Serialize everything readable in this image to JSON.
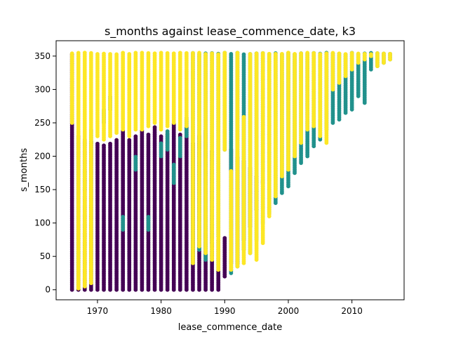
{
  "chart_data": {
    "type": "scatter",
    "title": "s_months against lease_commence_date, k3",
    "xlabel": "lease_commence_date",
    "ylabel": "s_months",
    "xlim": [
      1963.5,
      2018.2
    ],
    "ylim": [
      -15,
      373
    ],
    "x_ticks": [
      1970,
      1980,
      1990,
      2000,
      2010
    ],
    "y_ticks": [
      0,
      50,
      100,
      150,
      200,
      250,
      300,
      350
    ],
    "grid": false,
    "legend": "none",
    "colors": {
      "cluster_0": "#440154",
      "cluster_1": "#21918c",
      "cluster_2": "#fde725"
    },
    "max_remaining_months": 355,
    "lease_years": [
      1966,
      1967,
      1968,
      1969,
      1970,
      1971,
      1972,
      1973,
      1974,
      1975,
      1976,
      1977,
      1978,
      1979,
      1980,
      1981,
      1982,
      1983,
      1984,
      1985,
      1986,
      1987,
      1988,
      1989,
      1990,
      1991,
      1992,
      1993,
      1994,
      1995,
      1996,
      1997,
      1998,
      1999,
      2000,
      2001,
      2002,
      2003,
      2004,
      2005,
      2006,
      2007,
      2008,
      2009,
      2010,
      2011,
      2012,
      2013,
      2014,
      2015,
      2016
    ],
    "series": [
      {
        "values": [
          [
            1966,
            0,
            355
          ],
          [
            1967,
            0,
            230
          ],
          [
            1968,
            0,
            225
          ],
          [
            1969,
            0,
            222
          ],
          [
            1970,
            0,
            220
          ],
          [
            1971,
            0,
            218
          ],
          [
            1972,
            0,
            220
          ],
          [
            1973,
            0,
            225
          ],
          [
            1974,
            0,
            240
          ],
          [
            1975,
            0,
            225
          ],
          [
            1976,
            0,
            230
          ],
          [
            1977,
            0,
            240
          ],
          [
            1978,
            0,
            235
          ],
          [
            1979,
            0,
            245
          ],
          [
            1980,
            0,
            230
          ],
          [
            1981,
            0,
            235
          ],
          [
            1982,
            0,
            250
          ],
          [
            1983,
            0,
            235
          ],
          [
            1984,
            0,
            245
          ],
          [
            1985,
            0,
            220
          ],
          [
            1986,
            0,
            230
          ],
          [
            1987,
            0,
            240
          ],
          [
            1988,
            0,
            210
          ],
          [
            1989,
            0,
            75
          ],
          [
            1990,
            20,
            80
          ],
          [
            1991,
            40,
            210
          ],
          [
            1992,
            40,
            200
          ],
          [
            1993,
            75,
            195
          ],
          [
            1994,
            95,
            185
          ],
          [
            1995,
            120,
            170
          ],
          [
            1996,
            160,
            165
          ]
        ]
      },
      {
        "values": [
          [
            1967,
            30,
            60
          ],
          [
            1968,
            150,
            180
          ],
          [
            1969,
            220,
            240
          ],
          [
            1971,
            250,
            270
          ],
          [
            1972,
            270,
            290
          ],
          [
            1974,
            90,
            110
          ],
          [
            1976,
            180,
            200
          ],
          [
            1978,
            90,
            110
          ],
          [
            1980,
            200,
            220
          ],
          [
            1981,
            210,
            240
          ],
          [
            1982,
            160,
            190
          ],
          [
            1983,
            200,
            230
          ],
          [
            1984,
            230,
            260
          ],
          [
            1985,
            40,
            355
          ],
          [
            1986,
            60,
            355
          ],
          [
            1987,
            45,
            355
          ],
          [
            1988,
            70,
            355
          ],
          [
            1989,
            80,
            355
          ],
          [
            1990,
            210,
            355
          ],
          [
            1991,
            25,
            355
          ],
          [
            1992,
            35,
            355
          ],
          [
            1993,
            60,
            355
          ],
          [
            1994,
            55,
            355
          ],
          [
            1995,
            75,
            355
          ],
          [
            1996,
            100,
            355
          ],
          [
            1997,
            115,
            355
          ],
          [
            1998,
            130,
            355
          ],
          [
            1999,
            145,
            355
          ],
          [
            2000,
            155,
            355
          ],
          [
            2001,
            175,
            355
          ],
          [
            2002,
            190,
            355
          ],
          [
            2003,
            200,
            355
          ],
          [
            2004,
            215,
            355
          ],
          [
            2005,
            225,
            355
          ],
          [
            2006,
            240,
            355
          ],
          [
            2007,
            250,
            355
          ],
          [
            2008,
            255,
            355
          ],
          [
            2009,
            265,
            355
          ],
          [
            2010,
            270,
            355
          ],
          [
            2011,
            290,
            355
          ],
          [
            2012,
            280,
            355
          ],
          [
            2013,
            330,
            355
          ],
          [
            2014,
            335,
            355
          ],
          [
            2015,
            340,
            355
          ],
          [
            2016,
            345,
            355
          ]
        ]
      },
      {
        "values": [
          [
            1966,
            250,
            355
          ],
          [
            1967,
            2,
            355
          ],
          [
            1968,
            5,
            355
          ],
          [
            1969,
            10,
            355
          ],
          [
            1970,
            230,
            355
          ],
          [
            1971,
            225,
            355
          ],
          [
            1972,
            230,
            355
          ],
          [
            1973,
            235,
            355
          ],
          [
            1974,
            240,
            355
          ],
          [
            1975,
            230,
            355
          ],
          [
            1976,
            240,
            355
          ],
          [
            1977,
            240,
            355
          ],
          [
            1978,
            245,
            355
          ],
          [
            1979,
            250,
            355
          ],
          [
            1980,
            240,
            355
          ],
          [
            1981,
            245,
            355
          ],
          [
            1982,
            250,
            355
          ],
          [
            1983,
            240,
            355
          ],
          [
            1984,
            245,
            355
          ],
          [
            1985,
            40,
            355
          ],
          [
            1986,
            65,
            355
          ],
          [
            1987,
            55,
            355
          ],
          [
            1988,
            45,
            355
          ],
          [
            1989,
            30,
            355
          ],
          [
            1990,
            210,
            355
          ],
          [
            1991,
            30,
            180
          ],
          [
            1992,
            35,
            355
          ],
          [
            1993,
            40,
            260
          ],
          [
            1994,
            55,
            355
          ],
          [
            1995,
            45,
            355
          ],
          [
            1996,
            70,
            355
          ],
          [
            1997,
            110,
            355
          ],
          [
            1998,
            140,
            355
          ],
          [
            1999,
            170,
            355
          ],
          [
            2000,
            180,
            355
          ],
          [
            2001,
            200,
            355
          ],
          [
            2002,
            220,
            355
          ],
          [
            2003,
            240,
            355
          ],
          [
            2004,
            245,
            355
          ],
          [
            2005,
            230,
            355
          ],
          [
            2006,
            220,
            355
          ],
          [
            2007,
            300,
            355
          ],
          [
            2008,
            310,
            355
          ],
          [
            2009,
            320,
            355
          ],
          [
            2010,
            330,
            355
          ],
          [
            2011,
            340,
            355
          ],
          [
            2012,
            345,
            355
          ],
          [
            2013,
            350,
            355
          ],
          [
            2014,
            335,
            355
          ],
          [
            2015,
            340,
            355
          ],
          [
            2016,
            345,
            355
          ]
        ]
      }
    ]
  }
}
